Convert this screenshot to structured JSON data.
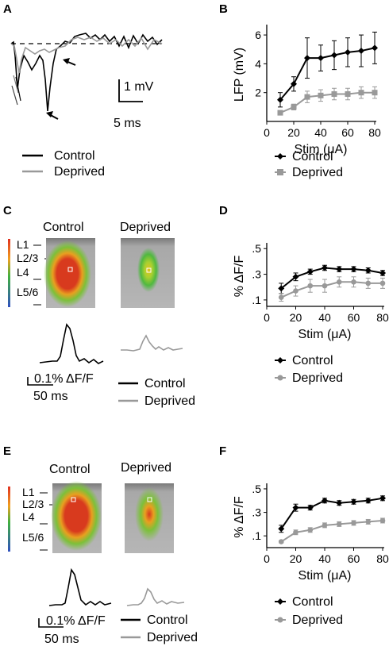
{
  "panels": {
    "A": {
      "label": "A",
      "scalebar_y": "1 mV",
      "scalebar_x": "5 ms",
      "legend": [
        "Control",
        "Deprived"
      ]
    },
    "B": {
      "label": "B"
    },
    "C": {
      "label": "C",
      "image_titles": [
        "Control",
        "Deprived"
      ],
      "layers": [
        "L1",
        "L2/3",
        "L4",
        "L5/6"
      ],
      "scalebar_y": "0.1% ΔF/F",
      "scalebar_x": "50 ms",
      "legend": [
        "Control",
        "Deprived"
      ]
    },
    "D": {
      "label": "D"
    },
    "E": {
      "label": "E",
      "image_titles": [
        "Control",
        "Deprived"
      ],
      "layers": [
        "L1",
        "L2/3",
        "L4",
        "L5/6"
      ],
      "scalebar_y": "0.1% ΔF/F",
      "scalebar_x": "50 ms",
      "legend": [
        "Control",
        "Deprived"
      ]
    },
    "F": {
      "label": "F"
    }
  },
  "colors": {
    "control": "#000000",
    "deprived": "#999999"
  },
  "chart_data": [
    {
      "panel": "B",
      "type": "line",
      "xlabel": "Stim (μA)",
      "ylabel": "LFP (mV)",
      "xlim": [
        0,
        80
      ],
      "ylim": [
        0,
        6.5
      ],
      "xticks": [
        0,
        20,
        40,
        60,
        80
      ],
      "yticks": [
        2,
        4,
        6
      ],
      "legend_position": "bottom",
      "series": [
        {
          "name": "Control",
          "x": [
            10,
            20,
            30,
            40,
            50,
            60,
            70,
            80
          ],
          "values": [
            1.5,
            2.6,
            4.4,
            4.4,
            4.6,
            4.8,
            4.9,
            5.1
          ],
          "errors": [
            0.5,
            0.5,
            1.4,
            0.9,
            1.0,
            1.0,
            1.1,
            1.1
          ]
        },
        {
          "name": "Deprived",
          "x": [
            10,
            20,
            30,
            40,
            50,
            60,
            70,
            80
          ],
          "values": [
            0.6,
            1.0,
            1.7,
            1.8,
            1.9,
            1.9,
            2.0,
            2.0
          ],
          "errors": [
            0.15,
            0.2,
            0.4,
            0.4,
            0.4,
            0.4,
            0.4,
            0.4
          ]
        }
      ]
    },
    {
      "panel": "D",
      "type": "line",
      "xlabel": "Stim (μA)",
      "ylabel": "% ΔF/F",
      "xlim": [
        0,
        80
      ],
      "ylim": [
        0.05,
        0.52
      ],
      "xticks": [
        0,
        20,
        40,
        60,
        80
      ],
      "yticks": [
        0.1,
        0.3,
        0.5
      ],
      "ytick_labels": [
        ".1",
        ".3",
        ".5"
      ],
      "legend_position": "bottom",
      "series": [
        {
          "name": "Control",
          "x": [
            10,
            20,
            30,
            40,
            50,
            60,
            70,
            80
          ],
          "values": [
            0.19,
            0.28,
            0.32,
            0.35,
            0.34,
            0.34,
            0.33,
            0.31
          ],
          "errors": [
            0.04,
            0.03,
            0.02,
            0.02,
            0.02,
            0.02,
            0.02,
            0.02
          ]
        },
        {
          "name": "Deprived",
          "x": [
            10,
            20,
            30,
            40,
            50,
            60,
            70,
            80
          ],
          "values": [
            0.12,
            0.17,
            0.21,
            0.21,
            0.24,
            0.24,
            0.23,
            0.23
          ],
          "errors": [
            0.03,
            0.04,
            0.05,
            0.05,
            0.04,
            0.04,
            0.04,
            0.04
          ]
        }
      ]
    },
    {
      "panel": "F",
      "type": "line",
      "xlabel": "Stim (μA)",
      "ylabel": "% ΔF/F",
      "xlim": [
        0,
        80
      ],
      "ylim": [
        0.0,
        0.52
      ],
      "xticks": [
        0,
        20,
        40,
        60,
        80
      ],
      "yticks": [
        0.1,
        0.3,
        0.5
      ],
      "ytick_labels": [
        ".1",
        ".3",
        ".5"
      ],
      "legend_position": "bottom",
      "series": [
        {
          "name": "Control",
          "x": [
            10,
            20,
            30,
            40,
            50,
            60,
            70,
            80
          ],
          "values": [
            0.16,
            0.34,
            0.34,
            0.4,
            0.38,
            0.39,
            0.4,
            0.42
          ],
          "errors": [
            0.03,
            0.03,
            0.02,
            0.02,
            0.02,
            0.02,
            0.02,
            0.02
          ]
        },
        {
          "name": "Deprived",
          "x": [
            10,
            20,
            30,
            40,
            50,
            60,
            70,
            80
          ],
          "values": [
            0.05,
            0.13,
            0.15,
            0.19,
            0.2,
            0.21,
            0.22,
            0.23
          ],
          "errors": [
            0.01,
            0.02,
            0.02,
            0.02,
            0.02,
            0.02,
            0.02,
            0.02
          ]
        }
      ]
    }
  ]
}
